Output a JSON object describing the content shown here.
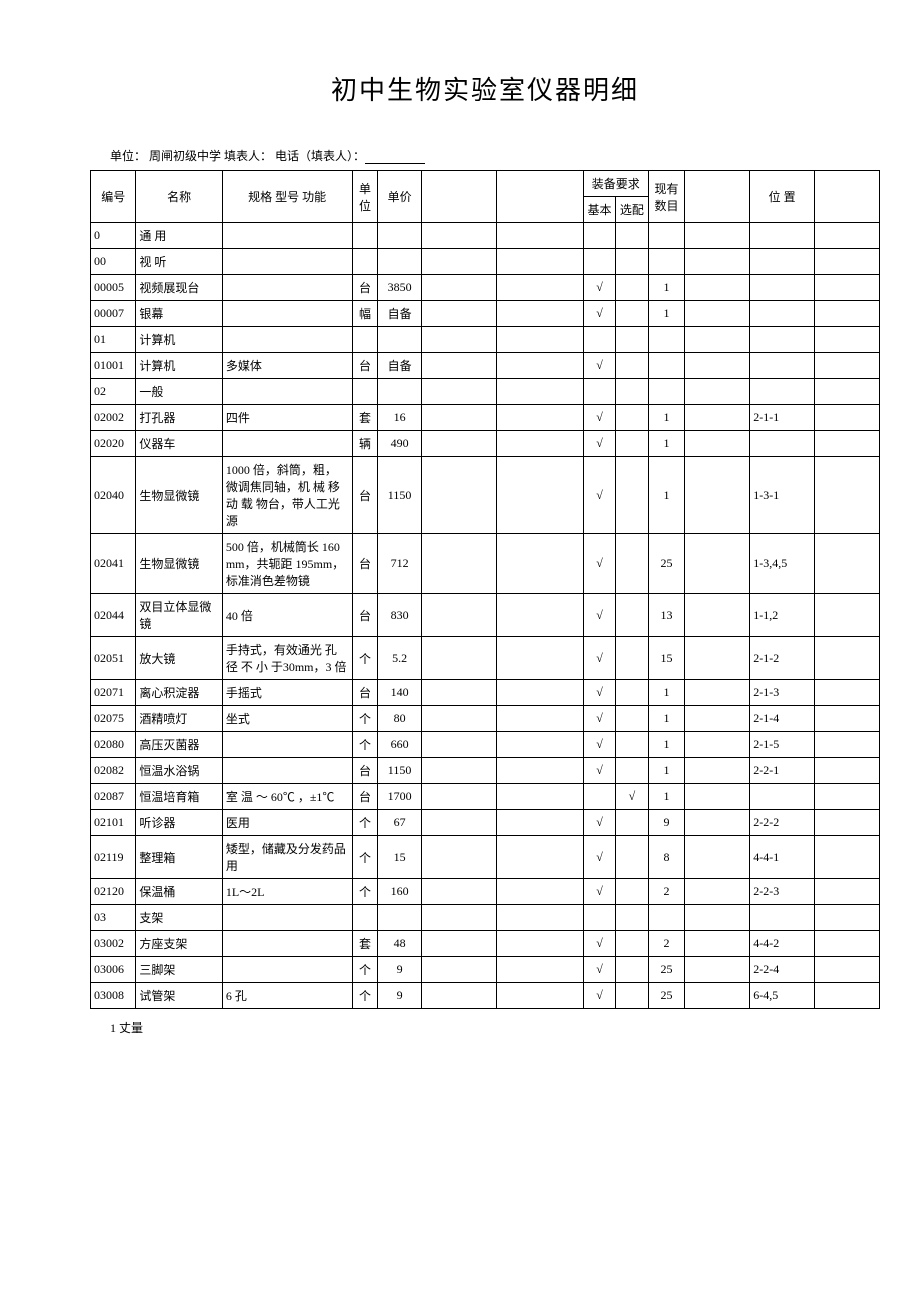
{
  "title": "初中生物实验室仪器明细",
  "subhead_prefix": "单位： 周闸初级中学 填表人： 电话（填表人）：",
  "header": {
    "code": "编号",
    "name": "名称",
    "spec": "规格 型号 功能",
    "unit": "单位",
    "price": "单价",
    "req_group": "装备要求",
    "basic": "基本",
    "select": "选配",
    "count": "现有\n数目",
    "position": "位 置"
  },
  "rows": [
    {
      "code": "0",
      "name": "通 用"
    },
    {
      "code": "00",
      "name": "视 听"
    },
    {
      "code": "00005",
      "name": "视频展现台",
      "spec": "",
      "unit": "台",
      "price": "3850",
      "basic": "√",
      "count": "1"
    },
    {
      "code": "00007",
      "name": "银幕",
      "spec": "",
      "unit": "幅",
      "price": "自备",
      "basic": "√",
      "count": "1"
    },
    {
      "code": "01",
      "name": "计算机"
    },
    {
      "code": "01001",
      "name": "计算机",
      "spec": "多媒体",
      "unit": "台",
      "price": "自备",
      "basic": "√"
    },
    {
      "code": "02",
      "name": "一般"
    },
    {
      "code": "02002",
      "name": "打孔器",
      "spec": "四件",
      "unit": "套",
      "price": "16",
      "basic": "√",
      "count": "1",
      "pos": "2-1-1"
    },
    {
      "code": "02020",
      "name": "仪器车",
      "spec": "",
      "unit": "辆",
      "price": "490",
      "basic": "√",
      "count": "1"
    },
    {
      "code": "02040",
      "name": "生物显微镜",
      "spec": "1000 倍，斜筒，粗，微调焦同轴，机 械 移 动 载 物台，带人工光源",
      "unit": "台",
      "price": "1150",
      "basic": "√",
      "count": "1",
      "pos": "1-3-1"
    },
    {
      "code": "02041",
      "name": "生物显微镜",
      "spec": "500 倍，机械筒长 160mm，共轭距 195mm，标准消色差物镜",
      "unit": "台",
      "price": "712",
      "basic": "√",
      "count": "25",
      "pos": "1-3,4,5"
    },
    {
      "code": "02044",
      "name": "双目立体显微镜",
      "spec": "40 倍",
      "unit": "台",
      "price": "830",
      "basic": "√",
      "count": "13",
      "pos": "1-1,2"
    },
    {
      "code": "02051",
      "name": "放大镜",
      "spec": "手持式，有效通光 孔 径 不 小 于30mm，3 倍",
      "unit": "个",
      "price": "5.2",
      "basic": "√",
      "count": "15",
      "pos": "2-1-2"
    },
    {
      "code": "02071",
      "name": "离心积淀器",
      "spec": "手摇式",
      "unit": "台",
      "price": "140",
      "basic": "√",
      "count": "1",
      "pos": "2-1-3"
    },
    {
      "code": "02075",
      "name": "酒精喷灯",
      "spec": "坐式",
      "unit": "个",
      "price": "80",
      "basic": "√",
      "count": "1",
      "pos": "2-1-4"
    },
    {
      "code": "02080",
      "name": "高压灭菌器",
      "spec": "",
      "unit": "个",
      "price": "660",
      "basic": "√",
      "count": "1",
      "pos": "2-1-5"
    },
    {
      "code": "02082",
      "name": "恒温水浴锅",
      "spec": "",
      "unit": "台",
      "price": "1150",
      "basic": "√",
      "count": "1",
      "pos": "2-2-1"
    },
    {
      "code": "02087",
      "name": "恒温培育箱",
      "spec": "室 温 ～ 60℃ ，±1℃",
      "unit": "台",
      "price": "1700",
      "select": "√",
      "count": "1"
    },
    {
      "code": "02101",
      "name": "听诊器",
      "spec": "医用",
      "unit": "个",
      "price": "67",
      "basic": "√",
      "count": "9",
      "pos": "2-2-2"
    },
    {
      "code": "02119",
      "name": "整理箱",
      "spec": "矮型，储藏及分发药品用",
      "unit": "个",
      "price": "15",
      "basic": "√",
      "count": "8",
      "pos": "4-4-1"
    },
    {
      "code": "02120",
      "name": "保温桶",
      "spec": "1L～2L",
      "unit": "个",
      "price": "160",
      "basic": "√",
      "count": "2",
      "pos": "2-2-3"
    },
    {
      "code": "03",
      "name": "支架"
    },
    {
      "code": "03002",
      "name": "方座支架",
      "spec": "",
      "unit": "套",
      "price": "48",
      "basic": "√",
      "count": "2",
      "pos": "4-4-2"
    },
    {
      "code": "03006",
      "name": "三脚架",
      "spec": "",
      "unit": "个",
      "price": "9",
      "basic": "√",
      "count": "25",
      "pos": "2-2-4"
    },
    {
      "code": "03008",
      "name": "试管架",
      "spec": "6 孔",
      "unit": "个",
      "price": "9",
      "basic": "√",
      "count": "25",
      "pos": "6-4,5"
    }
  ],
  "footer": "1 丈量"
}
